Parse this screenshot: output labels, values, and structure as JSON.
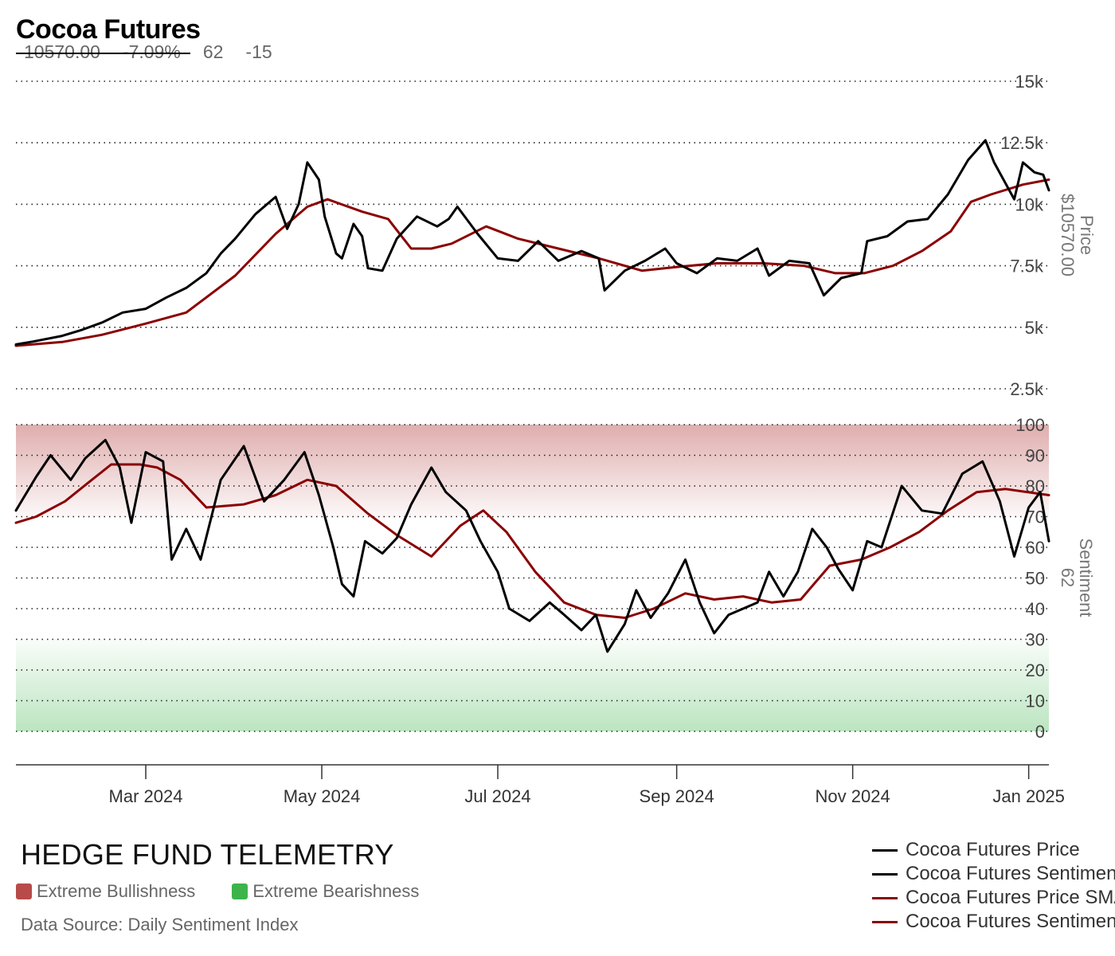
{
  "header": {
    "title": "Cocoa Futures",
    "price": "10570.00",
    "change_pct": "-7.09%",
    "sentiment": "62",
    "sentiment_change": "-15"
  },
  "footer": {
    "brand": "HEDGE FUND TELEMETRY",
    "zones": [
      {
        "label": "Extreme Bullishness",
        "color": "#b94a4a"
      },
      {
        "label": "Extreme Bearishness",
        "color": "#3cb44b"
      }
    ],
    "source": "Data Source: Daily Sentiment Index"
  },
  "legend": [
    {
      "label": "Cocoa Futures Price",
      "color": "#000000"
    },
    {
      "label": "Cocoa Futures Sentiment",
      "color": "#000000"
    },
    {
      "label": "Cocoa Futures Price SMA",
      "color": "#8b0000"
    },
    {
      "label": "Cocoa Futures Sentiment SMA",
      "color": "#8b0000"
    }
  ],
  "chart_data": [
    {
      "type": "line",
      "panel": "price",
      "ylabel": "Price",
      "ylabel_value": "$10570.00",
      "ylim": [
        1500,
        15000
      ],
      "ytick_values": [
        2500,
        5000,
        7500,
        10000,
        12500,
        15000
      ],
      "ytick_labels": [
        "2.5k",
        "5k",
        "7.5k",
        "10k",
        "12.5k",
        "15k"
      ],
      "grid": "dotted horizontal",
      "x_start": "2024-01-16",
      "x_end": "2025-01-08",
      "series": [
        {
          "name": "Cocoa Futures Price",
          "color": "#000000",
          "points": [
            [
              "2024-01-16",
              4300
            ],
            [
              "2024-01-22",
              4420
            ],
            [
              "2024-02-01",
              4650
            ],
            [
              "2024-02-08",
              4900
            ],
            [
              "2024-02-15",
              5200
            ],
            [
              "2024-02-22",
              5600
            ],
            [
              "2024-03-01",
              5750
            ],
            [
              "2024-03-08",
              6200
            ],
            [
              "2024-03-15",
              6600
            ],
            [
              "2024-03-22",
              7200
            ],
            [
              "2024-03-27",
              8000
            ],
            [
              "2024-04-01",
              8600
            ],
            [
              "2024-04-08",
              9600
            ],
            [
              "2024-04-15",
              10300
            ],
            [
              "2024-04-19",
              9000
            ],
            [
              "2024-04-23",
              10000
            ],
            [
              "2024-04-26",
              11700
            ],
            [
              "2024-04-30",
              11000
            ],
            [
              "2024-05-02",
              9500
            ],
            [
              "2024-05-06",
              8000
            ],
            [
              "2024-05-08",
              7800
            ],
            [
              "2024-05-12",
              9200
            ],
            [
              "2024-05-15",
              8700
            ],
            [
              "2024-05-17",
              7400
            ],
            [
              "2024-05-22",
              7300
            ],
            [
              "2024-05-27",
              8600
            ],
            [
              "2024-06-03",
              9500
            ],
            [
              "2024-06-10",
              9100
            ],
            [
              "2024-06-14",
              9400
            ],
            [
              "2024-06-17",
              9900
            ],
            [
              "2024-06-24",
              8800
            ],
            [
              "2024-07-01",
              7800
            ],
            [
              "2024-07-08",
              7700
            ],
            [
              "2024-07-15",
              8500
            ],
            [
              "2024-07-22",
              7700
            ],
            [
              "2024-07-30",
              8100
            ],
            [
              "2024-08-05",
              7800
            ],
            [
              "2024-08-07",
              6500
            ],
            [
              "2024-08-14",
              7300
            ],
            [
              "2024-08-21",
              7700
            ],
            [
              "2024-08-28",
              8200
            ],
            [
              "2024-09-01",
              7600
            ],
            [
              "2024-09-08",
              7200
            ],
            [
              "2024-09-15",
              7800
            ],
            [
              "2024-09-22",
              7700
            ],
            [
              "2024-09-29",
              8200
            ],
            [
              "2024-10-03",
              7100
            ],
            [
              "2024-10-10",
              7700
            ],
            [
              "2024-10-17",
              7600
            ],
            [
              "2024-10-22",
              6300
            ],
            [
              "2024-10-28",
              7000
            ],
            [
              "2024-11-04",
              7200
            ],
            [
              "2024-11-06",
              8500
            ],
            [
              "2024-11-13",
              8700
            ],
            [
              "2024-11-20",
              9300
            ],
            [
              "2024-11-27",
              9400
            ],
            [
              "2024-12-04",
              10400
            ],
            [
              "2024-12-11",
              11800
            ],
            [
              "2024-12-17",
              12600
            ],
            [
              "2024-12-20",
              11700
            ],
            [
              "2024-12-27",
              10200
            ],
            [
              "2024-12-30",
              11700
            ],
            [
              "2025-01-03",
              11300
            ],
            [
              "2025-01-06",
              11200
            ],
            [
              "2025-01-08",
              10570
            ]
          ]
        },
        {
          "name": "Cocoa Futures Price SMA",
          "color": "#8b0000",
          "points": [
            [
              "2024-01-16",
              4250
            ],
            [
              "2024-02-01",
              4400
            ],
            [
              "2024-02-15",
              4700
            ],
            [
              "2024-03-01",
              5150
            ],
            [
              "2024-03-15",
              5600
            ],
            [
              "2024-04-01",
              7100
            ],
            [
              "2024-04-15",
              8800
            ],
            [
              "2024-04-26",
              9900
            ],
            [
              "2024-05-03",
              10200
            ],
            [
              "2024-05-15",
              9700
            ],
            [
              "2024-05-24",
              9400
            ],
            [
              "2024-06-01",
              8200
            ],
            [
              "2024-06-08",
              8200
            ],
            [
              "2024-06-15",
              8400
            ],
            [
              "2024-06-27",
              9100
            ],
            [
              "2024-07-08",
              8600
            ],
            [
              "2024-07-22",
              8200
            ],
            [
              "2024-08-05",
              7800
            ],
            [
              "2024-08-20",
              7300
            ],
            [
              "2024-09-01",
              7450
            ],
            [
              "2024-09-15",
              7600
            ],
            [
              "2024-10-01",
              7600
            ],
            [
              "2024-10-15",
              7500
            ],
            [
              "2024-10-26",
              7200
            ],
            [
              "2024-11-05",
              7200
            ],
            [
              "2024-11-15",
              7500
            ],
            [
              "2024-11-25",
              8100
            ],
            [
              "2024-12-05",
              8900
            ],
            [
              "2024-12-12",
              10100
            ],
            [
              "2024-12-19",
              10400
            ],
            [
              "2024-12-30",
              10800
            ],
            [
              "2025-01-08",
              11000
            ]
          ]
        }
      ]
    },
    {
      "type": "line",
      "panel": "sentiment",
      "ylabel": "Sentiment",
      "ylabel_value": "62",
      "ylim": [
        0,
        100
      ],
      "ytick_values": [
        0,
        10,
        20,
        30,
        40,
        50,
        60,
        70,
        80,
        90,
        100
      ],
      "ytick_labels": [
        "0",
        "10",
        "20",
        "30",
        "40",
        "50",
        "60",
        "70",
        "80",
        "90",
        "100"
      ],
      "bands": [
        {
          "label": "Extreme Bullishness",
          "from": 70,
          "to": 100,
          "color": "#b94a4a"
        },
        {
          "label": "Extreme Bearishness",
          "from": 0,
          "to": 30,
          "color": "#3cb44b"
        }
      ],
      "series": [
        {
          "name": "Cocoa Futures Sentiment",
          "color": "#000000",
          "points": [
            [
              "2024-01-16",
              72
            ],
            [
              "2024-01-23",
              83
            ],
            [
              "2024-01-28",
              90
            ],
            [
              "2024-02-04",
              82
            ],
            [
              "2024-02-09",
              89
            ],
            [
              "2024-02-16",
              95
            ],
            [
              "2024-02-21",
              86
            ],
            [
              "2024-02-25",
              68
            ],
            [
              "2024-03-01",
              91
            ],
            [
              "2024-03-07",
              88
            ],
            [
              "2024-03-10",
              56
            ],
            [
              "2024-03-15",
              66
            ],
            [
              "2024-03-20",
              56
            ],
            [
              "2024-03-27",
              82
            ],
            [
              "2024-04-04",
              93
            ],
            [
              "2024-04-11",
              75
            ],
            [
              "2024-04-18",
              82
            ],
            [
              "2024-04-25",
              91
            ],
            [
              "2024-04-30",
              77
            ],
            [
              "2024-05-05",
              60
            ],
            [
              "2024-05-08",
              48
            ],
            [
              "2024-05-12",
              44
            ],
            [
              "2024-05-16",
              62
            ],
            [
              "2024-05-22",
              58
            ],
            [
              "2024-05-27",
              63
            ],
            [
              "2024-06-01",
              74
            ],
            [
              "2024-06-08",
              86
            ],
            [
              "2024-06-13",
              78
            ],
            [
              "2024-06-20",
              72
            ],
            [
              "2024-06-25",
              62
            ],
            [
              "2024-07-01",
              52
            ],
            [
              "2024-07-05",
              40
            ],
            [
              "2024-07-12",
              36
            ],
            [
              "2024-07-19",
              42
            ],
            [
              "2024-07-24",
              38
            ],
            [
              "2024-07-30",
              33
            ],
            [
              "2024-08-04",
              38
            ],
            [
              "2024-08-08",
              26
            ],
            [
              "2024-08-14",
              35
            ],
            [
              "2024-08-18",
              46
            ],
            [
              "2024-08-23",
              37
            ],
            [
              "2024-08-29",
              45
            ],
            [
              "2024-09-04",
              56
            ],
            [
              "2024-09-09",
              42
            ],
            [
              "2024-09-14",
              32
            ],
            [
              "2024-09-19",
              38
            ],
            [
              "2024-09-24",
              40
            ],
            [
              "2024-09-29",
              42
            ],
            [
              "2024-10-03",
              52
            ],
            [
              "2024-10-08",
              44
            ],
            [
              "2024-10-13",
              52
            ],
            [
              "2024-10-18",
              66
            ],
            [
              "2024-10-23",
              60
            ],
            [
              "2024-10-27",
              53
            ],
            [
              "2024-11-01",
              46
            ],
            [
              "2024-11-06",
              62
            ],
            [
              "2024-11-11",
              60
            ],
            [
              "2024-11-18",
              80
            ],
            [
              "2024-11-25",
              72
            ],
            [
              "2024-12-02",
              71
            ],
            [
              "2024-12-09",
              84
            ],
            [
              "2024-12-16",
              88
            ],
            [
              "2024-12-22",
              75
            ],
            [
              "2024-12-27",
              57
            ],
            [
              "2025-01-01",
              73
            ],
            [
              "2025-01-05",
              78
            ],
            [
              "2025-01-08",
              62
            ]
          ]
        },
        {
          "name": "Cocoa Futures Sentiment SMA",
          "color": "#8b0000",
          "points": [
            [
              "2024-01-16",
              68
            ],
            [
              "2024-01-23",
              70
            ],
            [
              "2024-02-02",
              75
            ],
            [
              "2024-02-10",
              81
            ],
            [
              "2024-02-18",
              87
            ],
            [
              "2024-02-28",
              87
            ],
            [
              "2024-03-05",
              86
            ],
            [
              "2024-03-13",
              82
            ],
            [
              "2024-03-22",
              73
            ],
            [
              "2024-04-04",
              74
            ],
            [
              "2024-04-15",
              77
            ],
            [
              "2024-04-26",
              82
            ],
            [
              "2024-05-06",
              80
            ],
            [
              "2024-05-17",
              71
            ],
            [
              "2024-05-27",
              64
            ],
            [
              "2024-06-08",
              57
            ],
            [
              "2024-06-18",
              67
            ],
            [
              "2024-06-26",
              72
            ],
            [
              "2024-07-04",
              65
            ],
            [
              "2024-07-14",
              52
            ],
            [
              "2024-07-24",
              42
            ],
            [
              "2024-08-04",
              38
            ],
            [
              "2024-08-14",
              37
            ],
            [
              "2024-08-24",
              40
            ],
            [
              "2024-09-04",
              45
            ],
            [
              "2024-09-14",
              43
            ],
            [
              "2024-09-24",
              44
            ],
            [
              "2024-10-04",
              42
            ],
            [
              "2024-10-14",
              43
            ],
            [
              "2024-10-24",
              54
            ],
            [
              "2024-11-04",
              56
            ],
            [
              "2024-11-14",
              60
            ],
            [
              "2024-11-24",
              65
            ],
            [
              "2024-12-04",
              72
            ],
            [
              "2024-12-14",
              78
            ],
            [
              "2024-12-24",
              79
            ],
            [
              "2025-01-08",
              77
            ]
          ]
        }
      ]
    }
  ],
  "x_axis": {
    "ticks": [
      {
        "date": "2024-03-01",
        "label": "Mar 2024"
      },
      {
        "date": "2024-05-01",
        "label": "May 2024"
      },
      {
        "date": "2024-07-01",
        "label": "Jul 2024"
      },
      {
        "date": "2024-09-01",
        "label": "Sep 2024"
      },
      {
        "date": "2024-11-01",
        "label": "Nov 2024"
      },
      {
        "date": "2025-01-01",
        "label": "Jan 2025"
      }
    ]
  }
}
